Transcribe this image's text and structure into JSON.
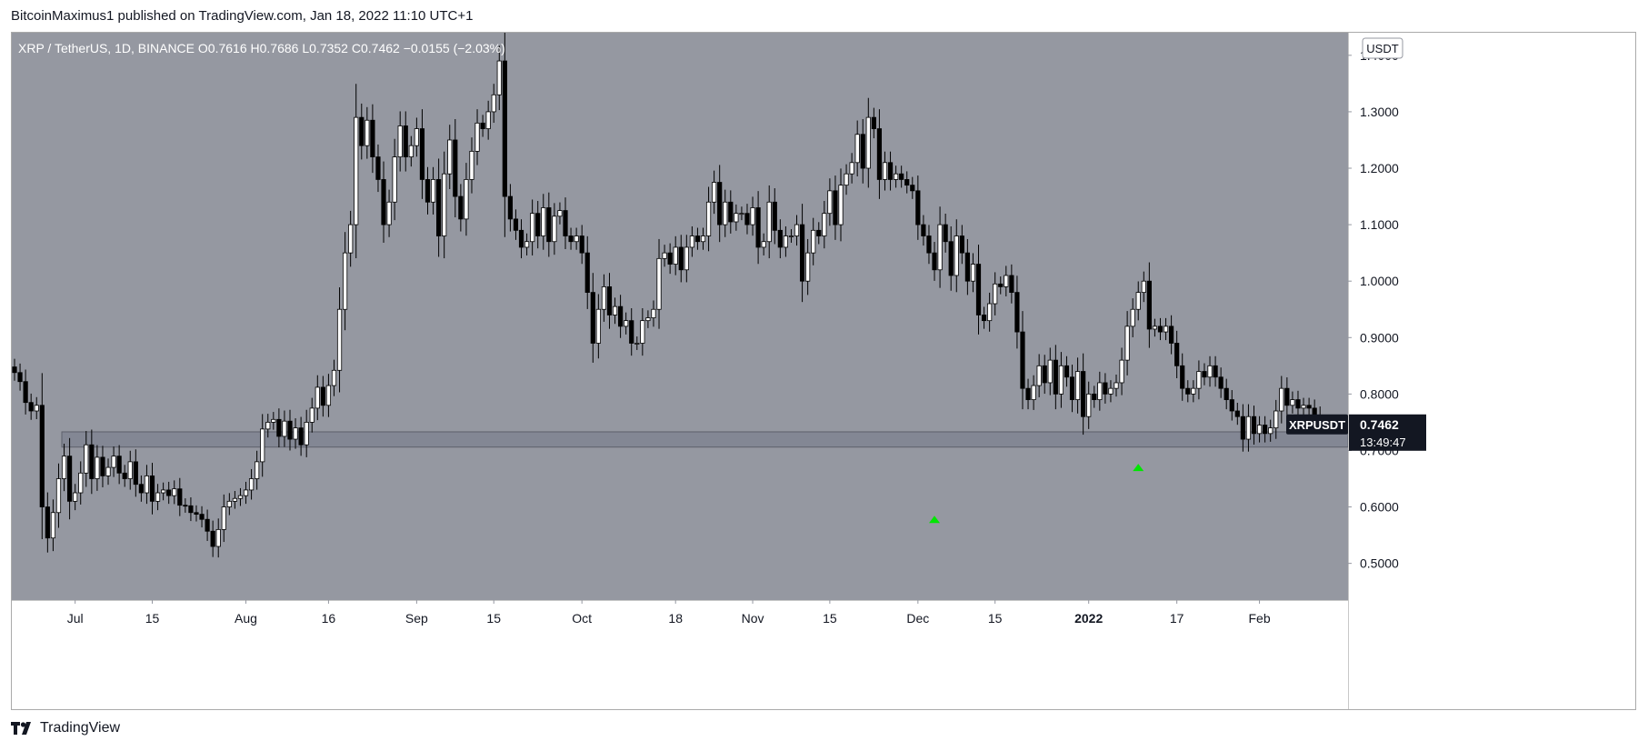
{
  "header": {
    "publisher_text": "BitcoinMaximus1 published on TradingView.com, Jan 18, 2022 11:10 UTC+1"
  },
  "footer": {
    "brand": "TradingView"
  },
  "symbol_bar": {
    "title": "XRP / TetherUS, 1D, BINANCE",
    "o_label": "O",
    "o_value": "0.7616",
    "h_label": "H",
    "h_value": "0.7686",
    "l_label": "L",
    "l_value": "0.7352",
    "c_label": "C",
    "c_value": "0.7462",
    "change": "−0.0155 (−2.03%)"
  },
  "currency_badge": "USDT",
  "price_tag": {
    "symbol": "XRPUSDT",
    "price": "0.7462",
    "countdown": "13:49:47"
  },
  "colors": {
    "chart_bg": "#9598a1",
    "axis_bg": "#ffffff",
    "axis_text": "#131722",
    "candle_up": "#ffffff",
    "candle_down": "#000000",
    "support_zone": "#838794",
    "arrow": "#00e600",
    "price_tag_bg": "#131722"
  },
  "chart_data": {
    "type": "candlestick",
    "title": "XRP / TetherUS, 1D, BINANCE",
    "xlabel": "",
    "ylabel": "",
    "ylim": [
      0.435,
      1.44
    ],
    "y_ticks": [
      "1.4000",
      "1.3000",
      "1.2000",
      "1.1000",
      "1.0000",
      "0.9000",
      "0.8000",
      "0.7000",
      "0.6000",
      "0.5000"
    ],
    "x_ticks": [
      {
        "label": "Jul",
        "date": "2021-07-01"
      },
      {
        "label": "15",
        "date": "2021-07-15"
      },
      {
        "label": "Aug",
        "date": "2021-08-01"
      },
      {
        "label": "16",
        "date": "2021-08-16"
      },
      {
        "label": "Sep",
        "date": "2021-09-01"
      },
      {
        "label": "15",
        "date": "2021-09-15"
      },
      {
        "label": "Oct",
        "date": "2021-10-01"
      },
      {
        "label": "18",
        "date": "2021-10-18"
      },
      {
        "label": "Nov",
        "date": "2021-11-01"
      },
      {
        "label": "15",
        "date": "2021-11-15"
      },
      {
        "label": "Dec",
        "date": "2021-12-01"
      },
      {
        "label": "15",
        "date": "2021-12-15"
      },
      {
        "label": "2022",
        "date": "2022-01-01"
      },
      {
        "label": "17",
        "date": "2022-01-17"
      },
      {
        "label": "Feb",
        "date": "2022-02-01"
      }
    ],
    "grid": false,
    "support_zone": {
      "from": 0.706,
      "to": 0.733
    },
    "markers": [
      {
        "date": "2021-12-04",
        "price": 0.578,
        "shape": "up-arrow"
      },
      {
        "date": "2022-01-10",
        "price": 0.67,
        "shape": "up-arrow"
      }
    ],
    "start_date": "2021-06-20",
    "series_note": "closes",
    "closes": [
      0.838,
      0.822,
      0.785,
      0.77,
      0.78,
      0.6,
      0.545,
      0.59,
      0.65,
      0.69,
      0.61,
      0.625,
      0.66,
      0.71,
      0.65,
      0.688,
      0.655,
      0.67,
      0.69,
      0.66,
      0.65,
      0.68,
      0.64,
      0.625,
      0.655,
      0.61,
      0.625,
      0.63,
      0.62,
      0.632,
      0.603,
      0.602,
      0.59,
      0.587,
      0.578,
      0.557,
      0.53,
      0.56,
      0.6,
      0.61,
      0.615,
      0.62,
      0.63,
      0.65,
      0.68,
      0.738,
      0.75,
      0.755,
      0.725,
      0.752,
      0.72,
      0.74,
      0.71,
      0.75,
      0.775,
      0.812,
      0.78,
      0.815,
      0.842,
      0.95,
      1.05,
      1.1,
      1.29,
      1.24,
      1.285,
      1.22,
      1.18,
      1.1,
      1.14,
      1.22,
      1.275,
      1.22,
      1.24,
      1.27,
      1.18,
      1.14,
      1.18,
      1.08,
      1.19,
      1.25,
      1.15,
      1.11,
      1.18,
      1.23,
      1.28,
      1.27,
      1.3,
      1.33,
      1.39,
      1.15,
      1.11,
      1.09,
      1.06,
      1.07,
      1.12,
      1.08,
      1.13,
      1.07,
      1.115,
      1.125,
      1.08,
      1.07,
      1.08,
      1.05,
      0.98,
      0.89,
      0.95,
      0.99,
      0.94,
      0.955,
      0.92,
      0.93,
      0.89,
      0.89,
      0.93,
      0.935,
      0.95,
      1.04,
      1.05,
      1.03,
      1.06,
      1.02,
      1.06,
      1.08,
      1.07,
      1.08,
      1.14,
      1.175,
      1.1,
      1.14,
      1.105,
      1.12,
      1.12,
      1.1,
      1.13,
      1.06,
      1.07,
      1.14,
      1.09,
      1.06,
      1.08,
      1.08,
      1.1,
      1.0,
      1.05,
      1.09,
      1.08,
      1.12,
      1.16,
      1.1,
      1.17,
      1.19,
      1.21,
      1.26,
      1.2,
      1.29,
      1.27,
      1.18,
      1.21,
      1.18,
      1.19,
      1.18,
      1.17,
      1.16,
      1.1,
      1.08,
      1.05,
      1.02,
      1.1,
      1.07,
      1.01,
      1.08,
      1.05,
      1.0,
      1.03,
      0.94,
      0.93,
      0.96,
      0.995,
      0.99,
      1.01,
      0.98,
      0.91,
      0.81,
      0.79,
      0.815,
      0.85,
      0.82,
      0.86,
      0.8,
      0.85,
      0.83,
      0.79,
      0.84,
      0.76,
      0.8,
      0.79,
      0.82,
      0.8,
      0.81,
      0.82,
      0.86,
      0.92,
      0.95,
      0.98,
      1.0,
      0.915,
      0.92,
      0.91,
      0.92,
      0.89,
      0.85,
      0.81,
      0.8,
      0.81,
      0.84,
      0.83,
      0.85,
      0.83,
      0.81,
      0.79,
      0.77,
      0.76,
      0.72,
      0.76,
      0.73,
      0.745,
      0.73,
      0.74,
      0.77,
      0.81,
      0.78,
      0.79,
      0.775,
      0.78,
      0.775,
      0.762,
      0.746
    ]
  }
}
